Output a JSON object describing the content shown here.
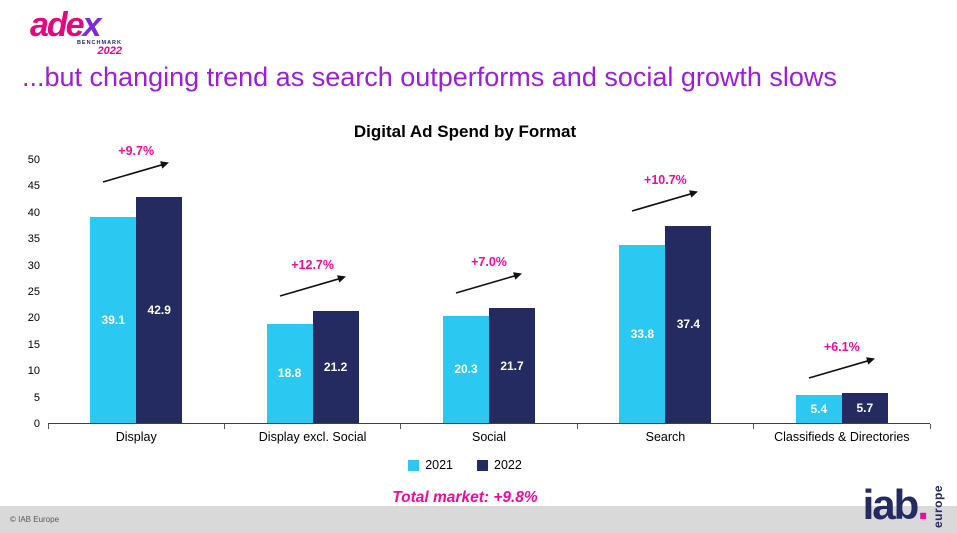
{
  "logo": {
    "text_main": "ade",
    "text_x": "x",
    "sub_line1": "BENCHMARK",
    "sub_line2": "2022"
  },
  "headline": "...but changing trend as search outperforms and social growth slows",
  "chart_data": {
    "type": "bar",
    "title": "Digital Ad Spend by Format",
    "categories": [
      "Display",
      "Display excl. Social",
      "Social",
      "Search",
      "Classifieds & Directories"
    ],
    "series": [
      {
        "name": "2021",
        "color": "#2bc9f2",
        "values": [
          39.1,
          18.8,
          20.3,
          33.8,
          5.4
        ]
      },
      {
        "name": "2022",
        "color": "#232b60",
        "values": [
          42.9,
          21.2,
          21.7,
          37.4,
          5.7
        ]
      }
    ],
    "growth_labels": [
      "+9.7%",
      "+12.7%",
      "+7.0%",
      "+10.7%",
      "+6.1%"
    ],
    "ylim": [
      0,
      50
    ],
    "y_ticks": [
      0,
      5,
      10,
      15,
      20,
      25,
      30,
      35,
      40,
      45,
      50
    ],
    "grid": false,
    "legend_position": "bottom",
    "value_labels": "inside-bars-white"
  },
  "footer": {
    "total_market": "Total market: +9.8%",
    "copyright": "© IAB Europe",
    "logo": {
      "name": "iab",
      "dot": ".",
      "region": "europe"
    }
  },
  "colors": {
    "headline_purple": "#9b1fd9",
    "accent_pink": "#ed0c9c",
    "series_2021_cyan": "#2bc9f2",
    "series_2022_navy": "#232b60",
    "footer_gray": "#d9d9d9"
  }
}
